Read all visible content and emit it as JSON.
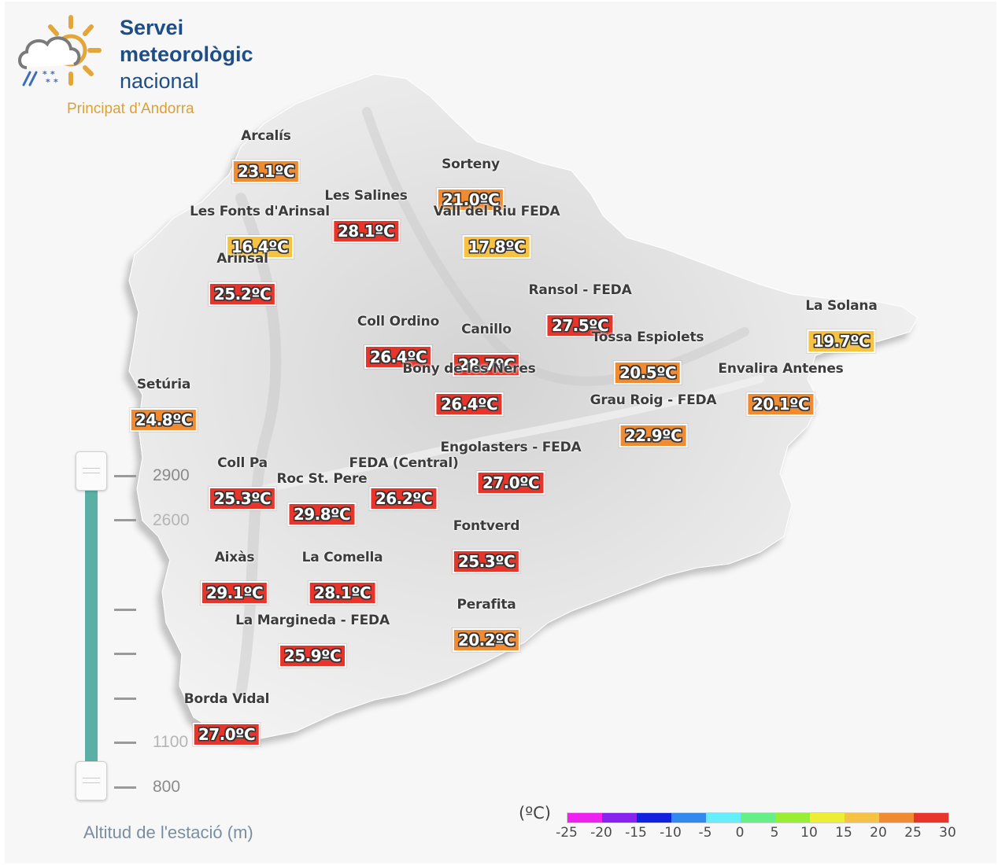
{
  "logo": {
    "line1": "Servei",
    "line2": "meteorològic",
    "line3": "nacional",
    "subtitle": "Principat d’Andorra",
    "colors": {
      "text": "#1f4e87",
      "subtitle": "#d9a13c",
      "sun": "#e3a63a",
      "cloud": "#7a7a7a",
      "rain": "#3c6cc0"
    },
    "icon": "sun-cloud-rain-snow-icon"
  },
  "stations": [
    {
      "name": "Arcalís",
      "temp": "23.1ºC",
      "color": "#f08b32"
    },
    {
      "name": "Sorteny",
      "temp": "21.0ºC",
      "color": "#f08b32"
    },
    {
      "name": "Les Salines",
      "temp": "28.1ºC",
      "color": "#e8352b"
    },
    {
      "name": "Les Fonts d'Arinsal",
      "temp": "16.4ºC",
      "color": "#f5c244"
    },
    {
      "name": "Vall del Riu FEDA",
      "temp": "17.8ºC",
      "color": "#f5c244"
    },
    {
      "name": "Arinsal",
      "temp": "25.2ºC",
      "color": "#e8352b"
    },
    {
      "name": "Ransol - FEDA",
      "temp": "27.5ºC",
      "color": "#e8352b"
    },
    {
      "name": "La Solana",
      "temp": "19.7ºC",
      "color": "#f5c244"
    },
    {
      "name": "Coll Ordino",
      "temp": "26.4ºC",
      "color": "#e8352b"
    },
    {
      "name": "Canillo",
      "temp": "28.7ºC",
      "color": "#e8352b"
    },
    {
      "name": "Tossa Espiolets",
      "temp": "20.5ºC",
      "color": "#f08b32"
    },
    {
      "name": "Bony de les Neres",
      "temp": "26.4ºC",
      "color": "#e8352b"
    },
    {
      "name": "Envalira Antenes",
      "temp": "20.1ºC",
      "color": "#f08b32"
    },
    {
      "name": "Setúria",
      "temp": "24.8ºC",
      "color": "#f08b32"
    },
    {
      "name": "Grau Roig - FEDA",
      "temp": "22.9ºC",
      "color": "#f08b32"
    },
    {
      "name": "Engolasters - FEDA",
      "temp": "27.0ºC",
      "color": "#e8352b"
    },
    {
      "name": "Coll Pa",
      "temp": "25.3ºC",
      "color": "#e8352b"
    },
    {
      "name": "FEDA (Central)",
      "temp": "26.2ºC",
      "color": "#e8352b"
    },
    {
      "name": "Roc St. Pere",
      "temp": "29.8ºC",
      "color": "#e8352b"
    },
    {
      "name": "Fontverd",
      "temp": "25.3ºC",
      "color": "#e8352b"
    },
    {
      "name": "Aixàs",
      "temp": "29.1ºC",
      "color": "#e8352b"
    },
    {
      "name": "La Comella",
      "temp": "28.1ºC",
      "color": "#e8352b"
    },
    {
      "name": "Perafita",
      "temp": "20.2ºC",
      "color": "#f08b32"
    },
    {
      "name": "La Margineda - FEDA",
      "temp": "25.9ºC",
      "color": "#e8352b"
    },
    {
      "name": "Borda Vidal",
      "temp": "27.0ºC",
      "color": "#e8352b"
    }
  ],
  "altitude_filter": {
    "title": "Altitud de l'estació (m)",
    "labels": [
      "2900",
      "2600",
      "1100",
      "800"
    ],
    "range": [
      800,
      2900
    ],
    "selected": [
      800,
      2900
    ],
    "track_color": "#5ab0a5"
  },
  "temperature_scale": {
    "unit": "(ºC)",
    "labels": [
      "-25",
      "-20",
      "-15",
      "-10",
      "-5",
      "0",
      "5",
      "10",
      "15",
      "20",
      "25",
      "30"
    ],
    "colors": [
      "#ee22ee",
      "#8822ee",
      "#1122dd",
      "#3388ee",
      "#66eeff",
      "#66ee88",
      "#99ee33",
      "#eeee33",
      "#f5c244",
      "#f08b32",
      "#e8352b"
    ]
  }
}
